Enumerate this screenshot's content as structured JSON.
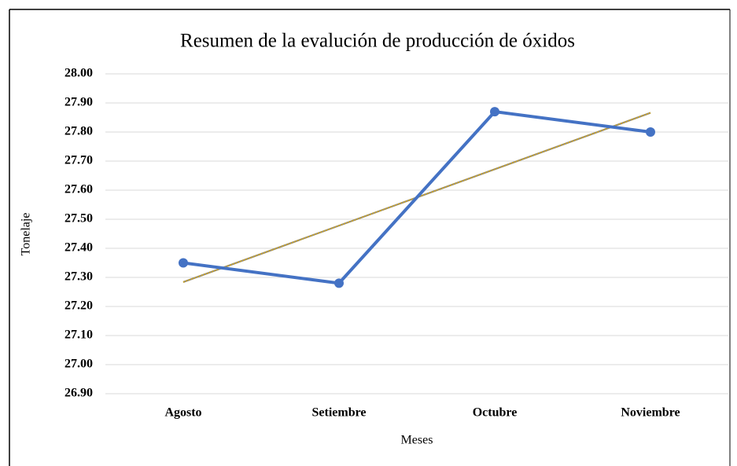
{
  "chart_data": {
    "type": "line",
    "title": "Resumen de la evalución de producción de óxidos",
    "x_label": "Meses",
    "y_label": "Tonelaje",
    "categories": [
      "Agosto",
      "Setiembre",
      "Octubre",
      "Noviembre"
    ],
    "series": [
      {
        "name": "Tonelaje",
        "color": "#4472c4",
        "values": [
          27.35,
          27.28,
          27.87,
          27.8
        ]
      }
    ],
    "trendline": true,
    "trendline_color": "#c9a227",
    "ylim": [
      26.9,
      28.0
    ],
    "yticks": [
      {
        "value": 26.9,
        "label": "26.90"
      },
      {
        "value": 27.0,
        "label": "27.00"
      },
      {
        "value": 27.1,
        "label": "27.10"
      },
      {
        "value": 27.2,
        "label": "27.20"
      },
      {
        "value": 27.3,
        "label": "27.30"
      },
      {
        "value": 27.4,
        "label": "27.40"
      },
      {
        "value": 27.5,
        "label": "27.50"
      },
      {
        "value": 27.6,
        "label": "27.60"
      },
      {
        "value": 27.7,
        "label": "27.70"
      },
      {
        "value": 27.8,
        "label": "27.80"
      },
      {
        "value": 27.9,
        "label": "27.90"
      },
      {
        "value": 28.0,
        "label": "28.00"
      }
    ],
    "grid": true
  }
}
